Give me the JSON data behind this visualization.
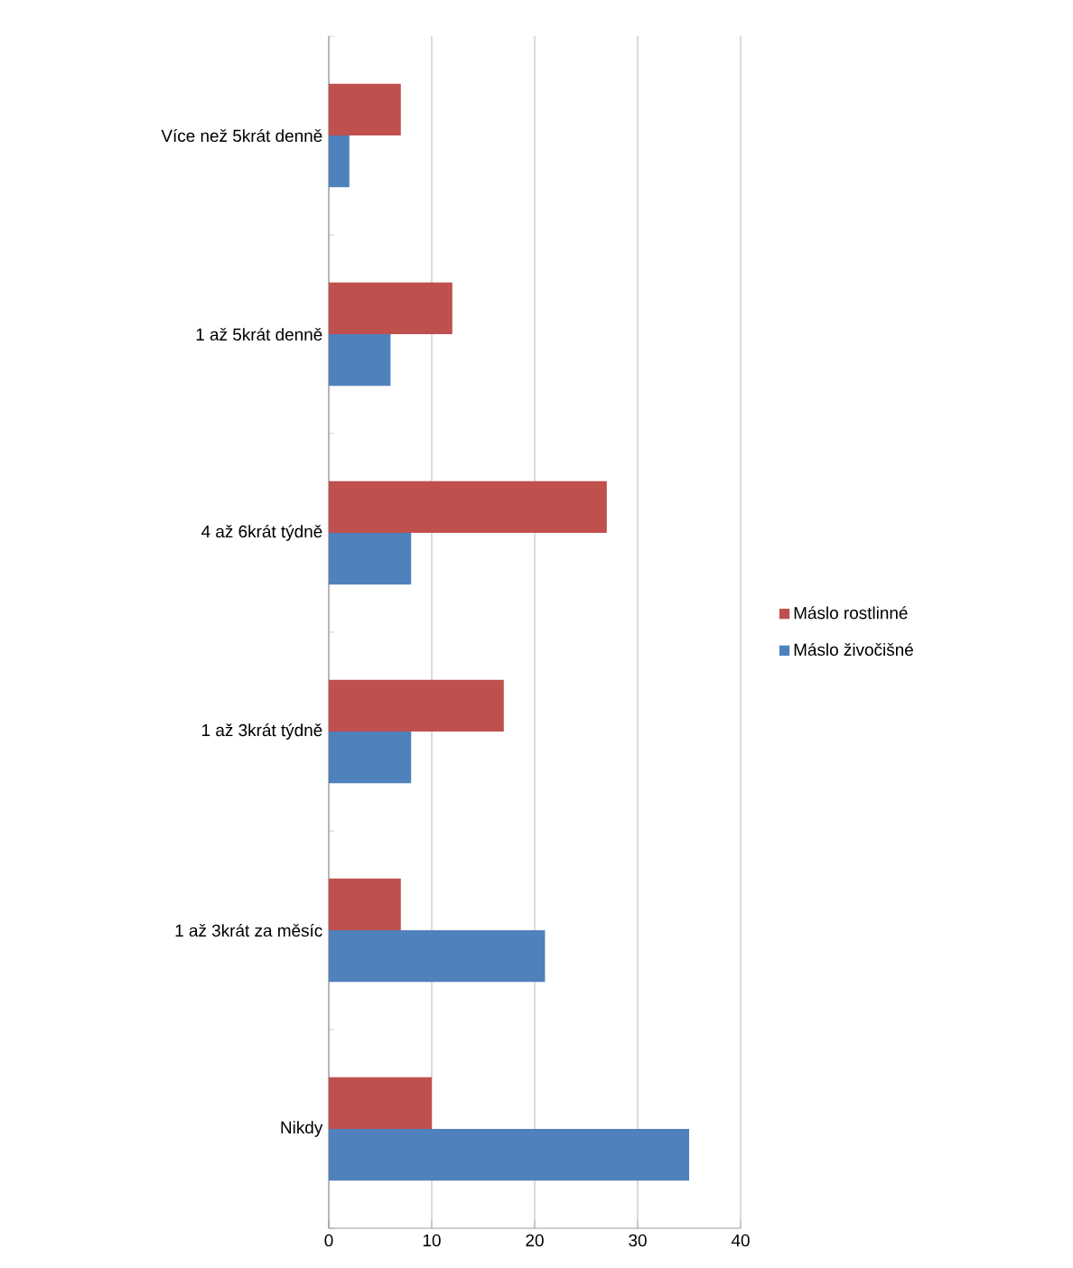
{
  "chart_data": {
    "type": "bar",
    "orientation": "horizontal",
    "categories": [
      "Více než 5krát denně",
      "1 až 5krát denně",
      "4 až 6krát týdně",
      "1 až 3krát týdně",
      "1 až 3krát za měsíc",
      "Nikdy"
    ],
    "series": [
      {
        "name": "Máslo rostlinné",
        "color": "#c0504d",
        "values": [
          7,
          12,
          27,
          17,
          7,
          10
        ]
      },
      {
        "name": "Máslo živočišné",
        "color": "#4f81bd",
        "values": [
          2,
          6,
          8,
          8,
          21,
          35
        ]
      }
    ],
    "xlim": [
      0,
      40
    ],
    "xticks": [
      0,
      10,
      20,
      30,
      40
    ],
    "grid": "x",
    "legend": "right"
  }
}
